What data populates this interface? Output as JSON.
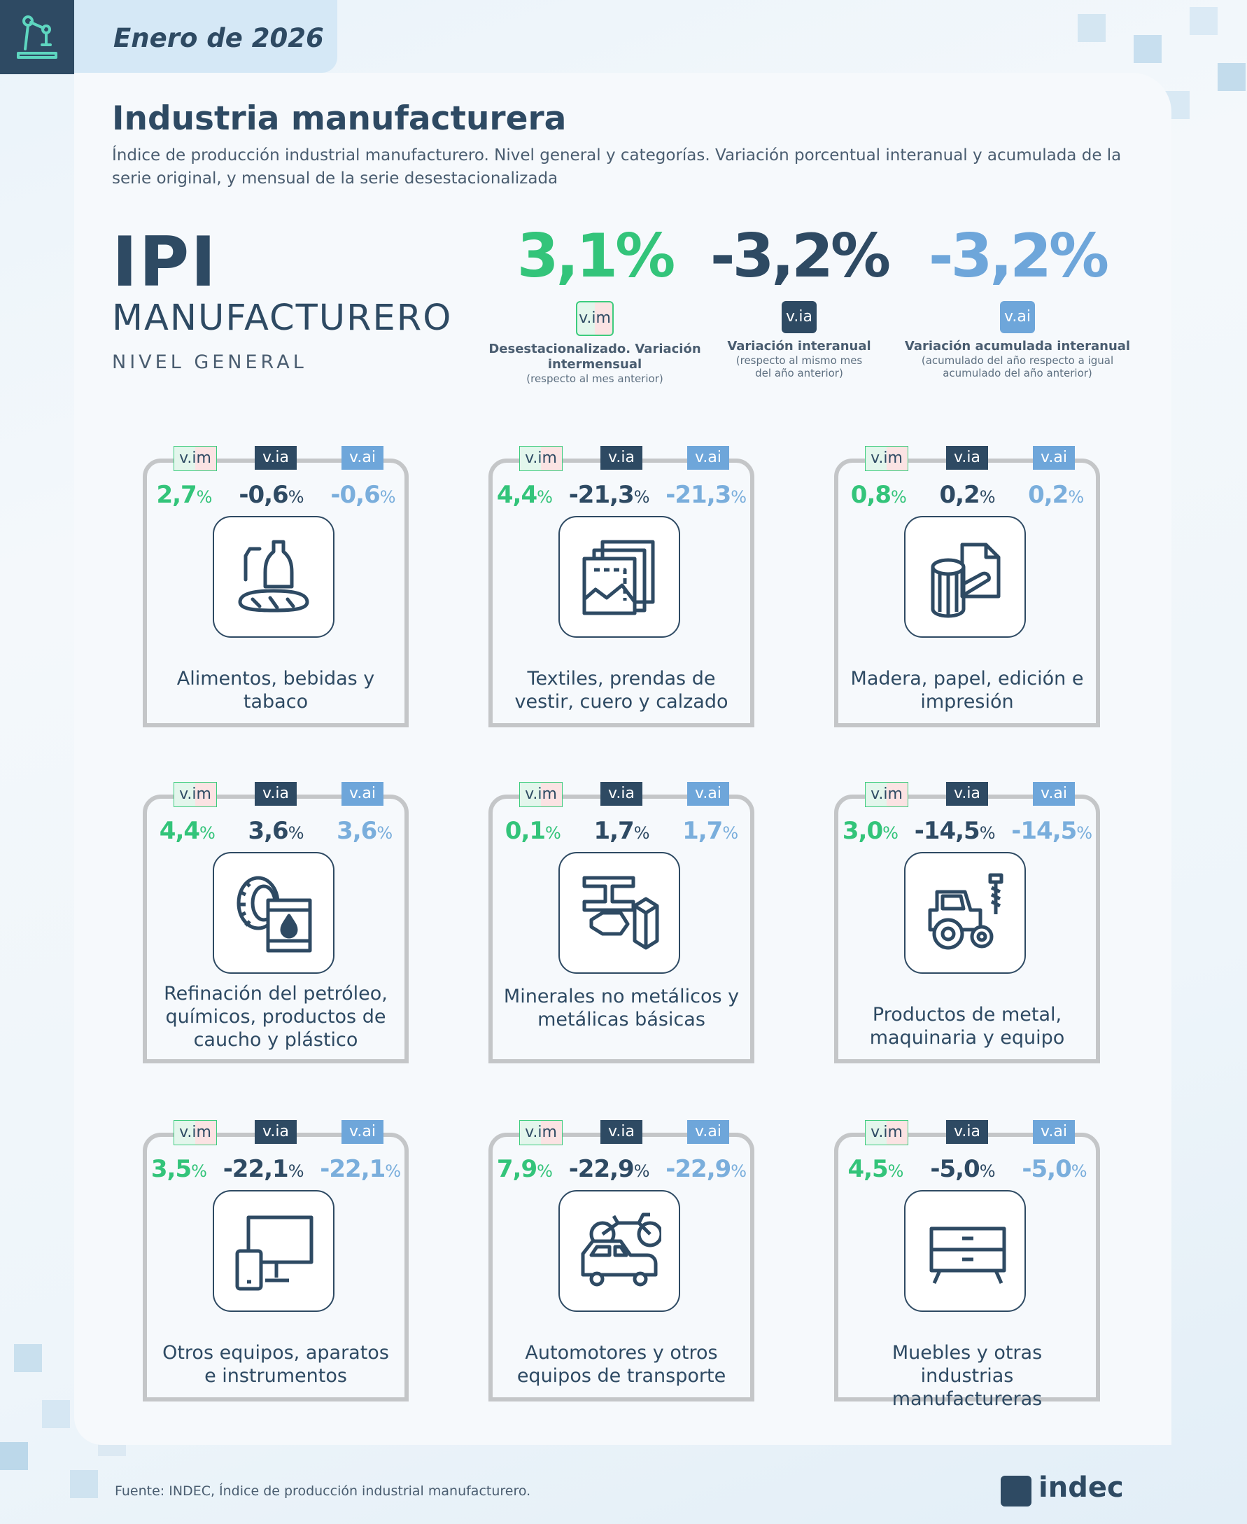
{
  "header": {
    "date": "Enero de 2026"
  },
  "title": "Industria manufacturera",
  "subtitle": "Índice de producción industrial manufacturero. Nivel general y categorías. Variación porcentual interanual y acumulada de la serie original, y mensual de la serie desestacionalizada",
  "headline": {
    "ipi": "IPI",
    "manufacturero": "MANUFACTURERO",
    "nivel": "NIVEL GENERAL",
    "kpis": [
      {
        "value": "3,1%",
        "badge": "v.im",
        "label": "Desestacionalizado. Variación intermensual",
        "sub": "(respecto al mes anterior)"
      },
      {
        "value": "-3,2%",
        "badge": "v.ia",
        "label": "Variación interanual",
        "sub": "(respecto al mismo mes del año anterior)"
      },
      {
        "value": "-3,2%",
        "badge": "v.ai",
        "label": "Variación acumulada interanual",
        "sub": "(acumulado del año respecto a igual acumulado del año anterior)"
      }
    ]
  },
  "tags": {
    "im": "v.im",
    "ia": "v.ia",
    "ai": "v.ai"
  },
  "categories": [
    {
      "name": "Alimentos, bebidas y tabaco",
      "icon": "food-bottle-icon",
      "vim": "2,7",
      "via": "-0,6",
      "vai": "-0,6"
    },
    {
      "name": "Textiles, prendas de vestir, cuero y calzado",
      "icon": "textile-fabric-icon",
      "vim": "4,4",
      "via": "-21,3",
      "vai": "-21,3"
    },
    {
      "name": "Madera, papel, edición e impresión",
      "icon": "wood-paper-icon",
      "vim": "0,8",
      "via": "0,2",
      "vai": "0,2"
    },
    {
      "name": "Refinación del petróleo, químicos, productos de caucho y plástico",
      "icon": "tire-oil-barrel-icon",
      "vim": "4,4",
      "via": "3,6",
      "vai": "3,6"
    },
    {
      "name": "Minerales no metálicos y metálicas básicas",
      "icon": "beam-minerals-icon",
      "vim": "0,1",
      "via": "1,7",
      "vai": "1,7"
    },
    {
      "name": "Productos de metal, maquinaria y equipo",
      "icon": "tractor-screw-icon",
      "vim": "3,0",
      "via": "-14,5",
      "vai": "-14,5"
    },
    {
      "name": "Otros equipos, aparatos e instrumentos",
      "icon": "monitor-phone-icon",
      "vim": "3,5",
      "via": "-22,1",
      "vai": "-22,1"
    },
    {
      "name": "Automotores y otros equipos de transporte",
      "icon": "car-motorcycle-icon",
      "vim": "7,9",
      "via": "-22,9",
      "vai": "-22,9"
    },
    {
      "name": "Muebles y otras industrias manufactureras",
      "icon": "dresser-icon",
      "vim": "4,5",
      "via": "-5,0",
      "vai": "-5,0"
    }
  ],
  "pct": "%",
  "footer": {
    "source": "Fuente: INDEC, Índice de producción industrial manufacturero.",
    "logo": "indec"
  },
  "colors": {
    "navy": "#2e4a63",
    "green": "#33c47a",
    "lightblue": "#7aaedc"
  }
}
